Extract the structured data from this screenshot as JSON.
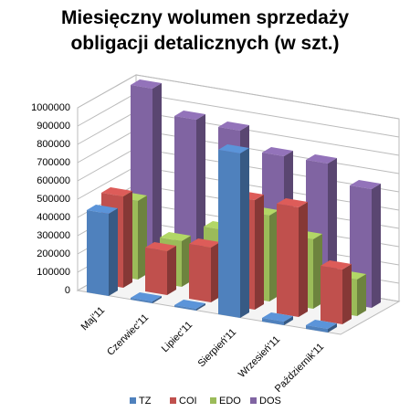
{
  "chart_data": {
    "type": "bar3d",
    "title": "Miesięczny wolumen sprzedaży obligacji detalicznych (w szt.)",
    "categories": [
      "Maj'11",
      "Czerwiec'11",
      "Lipiec'11",
      "Sierpień'11",
      "Wrzesień'11",
      "Październik'11"
    ],
    "series": [
      {
        "name": "TZ",
        "color": "#4f81bd",
        "values": [
          450000,
          10000,
          10000,
          900000,
          20000,
          20000
        ]
      },
      {
        "name": "COI",
        "color": "#c0504d",
        "values": [
          500000,
          240000,
          300000,
          600000,
          600000,
          300000
        ]
      },
      {
        "name": "EDO",
        "color": "#9bbb59",
        "values": [
          430000,
          250000,
          350000,
          470000,
          380000,
          200000
        ]
      },
      {
        "name": "DOS",
        "color": "#8064a2",
        "values": [
          1000000,
          870000,
          850000,
          750000,
          750000,
          650000
        ]
      }
    ],
    "ylim": [
      0,
      1000000
    ],
    "yticks": [
      0,
      100000,
      200000,
      300000,
      400000,
      500000,
      600000,
      700000,
      800000,
      900000,
      1000000
    ],
    "grid": true,
    "legend": "bottom"
  }
}
